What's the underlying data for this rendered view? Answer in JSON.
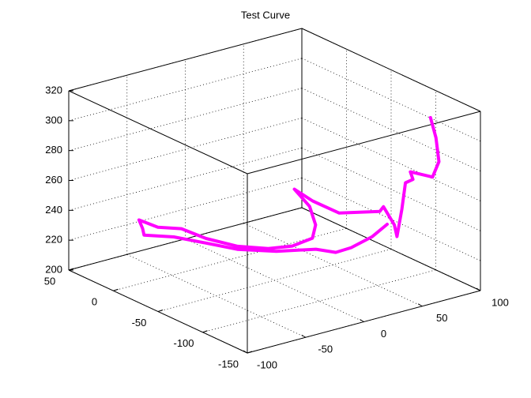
{
  "chart_data": {
    "type": "line3d",
    "title": "Test Curve",
    "x": [
      92,
      69,
      45,
      31,
      24,
      0,
      -19,
      -29,
      -39,
      -53,
      -55,
      -52,
      -45,
      -34,
      -32,
      -24,
      -10,
      6,
      21,
      26,
      27,
      30,
      35,
      44,
      68,
      72,
      69,
      69,
      74,
      77,
      85,
      82,
      88,
      92,
      94,
      97
    ],
    "y": [
      -56,
      -69,
      -77,
      -78,
      -65,
      -52,
      -33,
      -10,
      12,
      27,
      26,
      34,
      22,
      10,
      -15,
      -40,
      -56,
      -62,
      -65,
      -62,
      -54,
      -33,
      -47,
      -65,
      -79,
      -78,
      -94,
      -97,
      -96,
      -96,
      -94,
      -95,
      -112,
      -114,
      -108,
      -98
    ],
    "z": [
      220,
      220,
      220,
      220,
      220,
      220,
      220,
      220,
      220,
      220,
      225,
      228,
      225,
      225,
      225,
      225,
      225,
      225,
      228,
      235,
      245,
      250,
      245,
      240,
      240,
      242,
      235,
      228,
      245,
      262,
      262,
      268,
      268,
      278,
      292,
      302
    ],
    "color": "#ff00ff",
    "xlim": [
      -100,
      100
    ],
    "xticks": [
      -100,
      -50,
      0,
      50,
      100
    ],
    "ylim": [
      -150,
      50
    ],
    "yticks": [
      -150,
      -100,
      -50,
      0,
      50
    ],
    "zlim": [
      200,
      320
    ],
    "zticks": [
      200,
      220,
      240,
      260,
      280,
      300,
      320
    ],
    "grid": true
  }
}
